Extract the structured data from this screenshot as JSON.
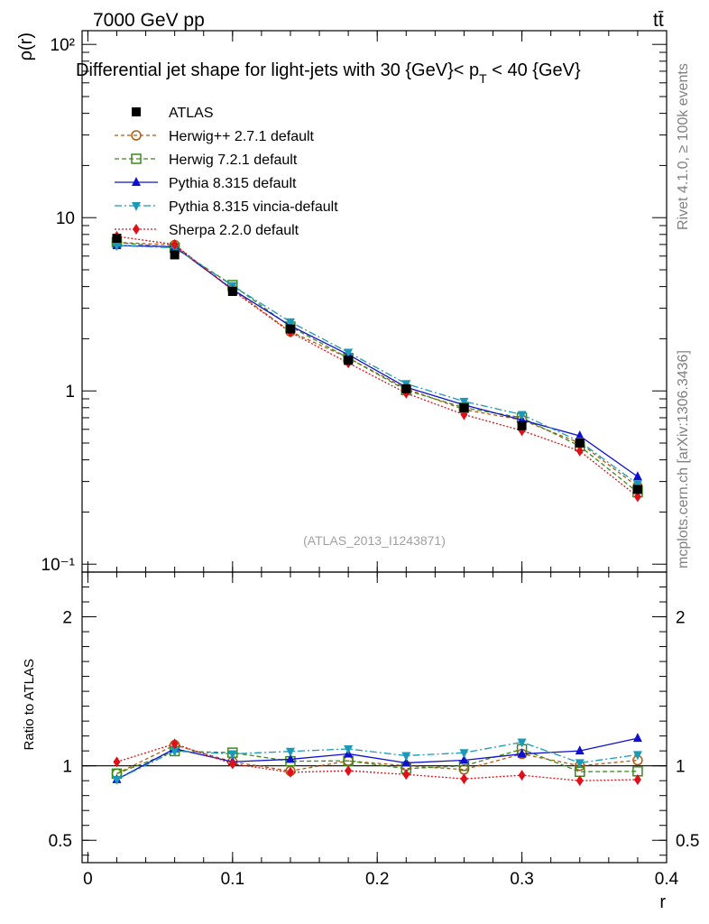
{
  "header": {
    "energy": "7000 GeV pp",
    "process": "tt̄",
    "title": "Differential jet shape for light-jets with 30 {GeV}< p",
    "title_sub": "T",
    "title_end": " < 40 {GeV}"
  },
  "side": {
    "rivet": "Rivet 4.1.0, ≥ 100k events",
    "mcplots": "mcplots.cern.ch [arXiv:1306.3436]"
  },
  "analysis_label": "(ATLAS_2013_I1243871)",
  "chart_data": {
    "type": "line",
    "x": [
      0.02,
      0.06,
      0.1,
      0.14,
      0.18,
      0.22,
      0.26,
      0.3,
      0.34,
      0.38
    ],
    "xlabel": "r",
    "ylabel": "ρ(r)",
    "ratio_ylabel": "Ratio to ATLAS",
    "xlim": [
      -0.004,
      0.4
    ],
    "ylim": [
      0.09,
      120
    ],
    "ratio_ylim": [
      0.35,
      2.3
    ],
    "x_ticks": [
      "0",
      "0.1",
      "0.2",
      "0.3",
      "0.4"
    ],
    "y_ticks": [
      "10⁻¹",
      "1",
      "10",
      "10²"
    ],
    "ratio_ticks": [
      "0.5",
      "1",
      "2"
    ],
    "data": {
      "name": "ATLAS",
      "values": [
        7.6,
        6.1,
        3.75,
        2.28,
        1.5,
        1.03,
        0.8,
        0.63,
        0.5,
        0.27
      ]
    },
    "series": [
      {
        "name": "Herwig++ 2.7.1 default",
        "color": "#b05a10",
        "marker": "circle-open",
        "dash": "4,3",
        "values": [
          7.2,
          6.95,
          3.85,
          2.2,
          1.55,
          1.03,
          0.78,
          0.68,
          0.5,
          0.28
        ]
      },
      {
        "name": "Herwig 7.2.1 default",
        "color": "#3a8a1a",
        "marker": "square-open",
        "dash": "5,3",
        "values": [
          7.2,
          6.7,
          4.08,
          2.35,
          1.55,
          1.01,
          0.8,
          0.7,
          0.48,
          0.26
        ]
      },
      {
        "name": "Pythia 8.315 default",
        "color": "#1010d0",
        "marker": "triangle-up",
        "dash": "",
        "values": [
          6.9,
          6.8,
          3.85,
          2.38,
          1.62,
          1.05,
          0.83,
          0.68,
          0.55,
          0.32
        ]
      },
      {
        "name": "Pythia 8.315 vincia-default",
        "color": "#1a9ab8",
        "marker": "triangle-down",
        "dash": "8,3,2,3",
        "values": [
          6.9,
          6.7,
          4.05,
          2.5,
          1.67,
          1.1,
          0.87,
          0.73,
          0.51,
          0.29
        ]
      },
      {
        "name": "Sherpa 2.2.0 default",
        "color": "#e0101a",
        "marker": "diamond",
        "dash": "2,2",
        "values": [
          7.8,
          7.0,
          3.8,
          2.18,
          1.45,
          0.97,
          0.73,
          0.59,
          0.45,
          0.245
        ]
      }
    ]
  }
}
